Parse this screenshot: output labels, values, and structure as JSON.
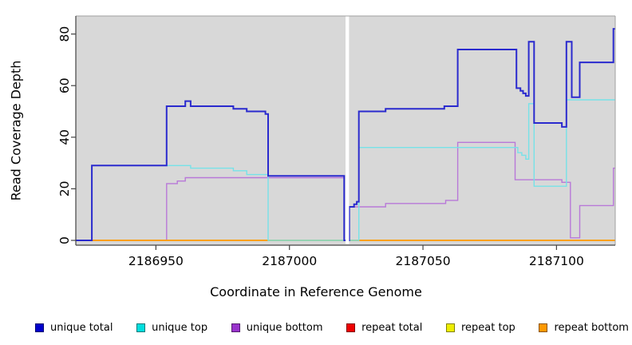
{
  "figure": {
    "background": "#ffffff",
    "panel_background": "#d8d8d8",
    "gap_color": "#ffffff"
  },
  "chart_data": {
    "type": "line",
    "subtype": "step-coverage-plot",
    "title": "",
    "xlabel": "Coordinate in Reference Genome",
    "ylabel": "Read Coverage Depth",
    "xlim": [
      2186920,
      2187122
    ],
    "ylim": [
      0,
      87
    ],
    "x_ticks": [
      2186950,
      2187000,
      2187050,
      2187100
    ],
    "x_tick_labels": [
      "2186950",
      "2187000",
      "2187050",
      "2187100"
    ],
    "y_ticks": [
      0,
      20,
      40,
      60,
      80
    ],
    "y_tick_labels": [
      "0",
      "20",
      "40",
      "60",
      "80"
    ],
    "grid": false,
    "legend_position": "bottom",
    "gap_region": [
      2187021.0,
      2187022.3
    ],
    "series": [
      {
        "name": "unique bottom",
        "color": "#b878d8",
        "points": [
          [
            2186920,
            0
          ],
          [
            2186954,
            22
          ],
          [
            2186958,
            23
          ],
          [
            2186961,
            24.3
          ],
          [
            2187020.5,
            0
          ],
          [
            2187022.4,
            13
          ],
          [
            2187036,
            14.3
          ],
          [
            2187058.5,
            15.5
          ],
          [
            2187063,
            38
          ],
          [
            2187084.5,
            23.5
          ],
          [
            2187102,
            22.5
          ],
          [
            2187105.2,
            1
          ],
          [
            2187108.7,
            13.5
          ],
          [
            2187121.3,
            28
          ]
        ],
        "end": 2187122
      },
      {
        "name": "repeat total",
        "color": "#e03030",
        "points": [
          [
            2186920,
            0
          ]
        ],
        "end": 2187122
      },
      {
        "name": "repeat top",
        "color": "#e8e800",
        "points": [
          [
            2186920,
            0
          ]
        ],
        "end": 2187122
      },
      {
        "name": "repeat bottom",
        "color": "#ff9d00",
        "points": [
          [
            2186920,
            0
          ]
        ],
        "end": 2187122
      },
      {
        "name": "unique top",
        "color": "#76e2e8",
        "points": [
          [
            2186920,
            0
          ],
          [
            2186926,
            29
          ],
          [
            2186963,
            28
          ],
          [
            2186979,
            27
          ],
          [
            2186984,
            25.5
          ],
          [
            2186992,
            0
          ],
          [
            2187026,
            36
          ],
          [
            2187085.5,
            34
          ],
          [
            2187087,
            33
          ],
          [
            2187088.5,
            31.5
          ],
          [
            2187089.6,
            53
          ],
          [
            2187091.6,
            21
          ],
          [
            2187103.7,
            54.5
          ]
        ],
        "end": 2187122
      },
      {
        "name": "unique total",
        "color": "#2a2ace",
        "points": [
          [
            2186920,
            0
          ],
          [
            2186926,
            29
          ],
          [
            2186954,
            52
          ],
          [
            2186961,
            54
          ],
          [
            2186963,
            52
          ],
          [
            2186979,
            51
          ],
          [
            2186984,
            50
          ],
          [
            2186991,
            49
          ],
          [
            2186992,
            25
          ],
          [
            2187020.5,
            0
          ],
          [
            2187022.4,
            13
          ],
          [
            2187024.2,
            14
          ],
          [
            2187025.2,
            15
          ],
          [
            2187026,
            50
          ],
          [
            2187036,
            51
          ],
          [
            2187058,
            52
          ],
          [
            2187063,
            74
          ],
          [
            2187085,
            59
          ],
          [
            2187086.5,
            58
          ],
          [
            2187087.5,
            57
          ],
          [
            2187088.5,
            56
          ],
          [
            2187089.6,
            77
          ],
          [
            2187091.6,
            45.5
          ],
          [
            2187102,
            44
          ],
          [
            2187103.7,
            77
          ],
          [
            2187105.7,
            55.5
          ],
          [
            2187108.7,
            69
          ],
          [
            2187121.3,
            82
          ]
        ],
        "end": 2187122
      }
    ]
  },
  "legend": {
    "items": [
      {
        "label": "unique total",
        "color": "#0000cc"
      },
      {
        "label": "unique top",
        "color": "#00dede"
      },
      {
        "label": "unique bottom",
        "color": "#9933cc"
      },
      {
        "label": "repeat total",
        "color": "#ee0000"
      },
      {
        "label": "repeat top",
        "color": "#ededed00",
        "swatch": "#eded00"
      },
      {
        "label": "repeat bottom",
        "color": "#ff9900"
      }
    ]
  }
}
